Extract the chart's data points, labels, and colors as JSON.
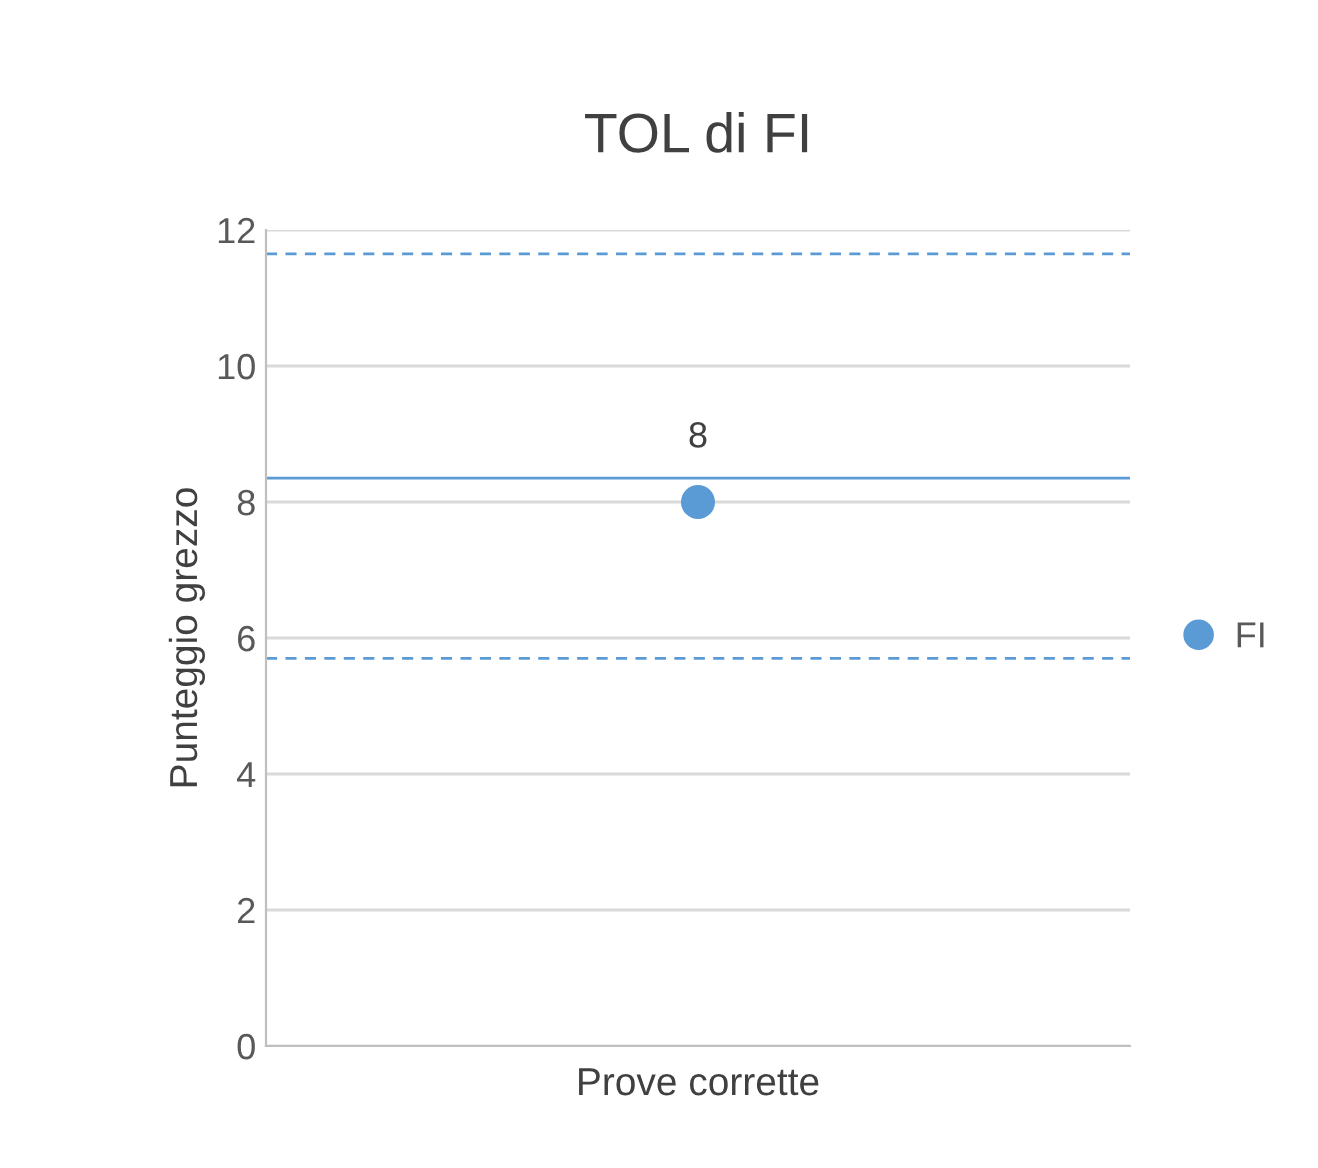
{
  "chart_data": {
    "type": "scatter",
    "title": "TOL di FI",
    "xlabel": "Prove corrette",
    "ylabel": "Punteggio grezzo",
    "categories": [
      null
    ],
    "series": [
      {
        "name": "FI",
        "color": "#5b9bd5",
        "values": [
          8
        ]
      }
    ],
    "ylim": [
      0,
      12
    ],
    "yticks": [
      0,
      2,
      4,
      6,
      8,
      10,
      12
    ],
    "grid": "y",
    "legend": "right",
    "marker": "circle",
    "data_labels": true,
    "ref_lines": [
      {
        "axis": "y",
        "value": 11.65,
        "color": "#5b9bd5",
        "line_style": "dashed"
      },
      {
        "axis": "y",
        "value": 8.35,
        "color": "#5b9bd5",
        "line_style": "solid"
      },
      {
        "axis": "y",
        "value": 5.7,
        "color": "#5b9bd5",
        "line_style": "dashed"
      }
    ]
  }
}
